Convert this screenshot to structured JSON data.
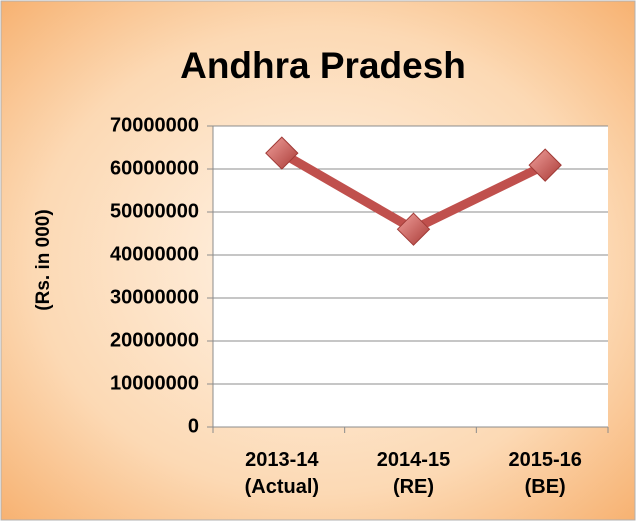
{
  "chart_data": {
    "type": "line",
    "title": "Andhra Pradesh",
    "y_label": "(Rs. in 000)",
    "categories": [
      "2013-14 (Actual)",
      "2014-15 (RE)",
      "2015-16 (BE)"
    ],
    "series": [
      {
        "name": "Andhra Pradesh",
        "color": "#c0504d",
        "values": [
          63700000,
          46000000,
          60900000
        ]
      }
    ],
    "ylim": [
      0,
      70000000
    ],
    "yticks": [
      0,
      10000000,
      20000000,
      30000000,
      40000000,
      50000000,
      60000000,
      70000000
    ],
    "grid": true
  }
}
